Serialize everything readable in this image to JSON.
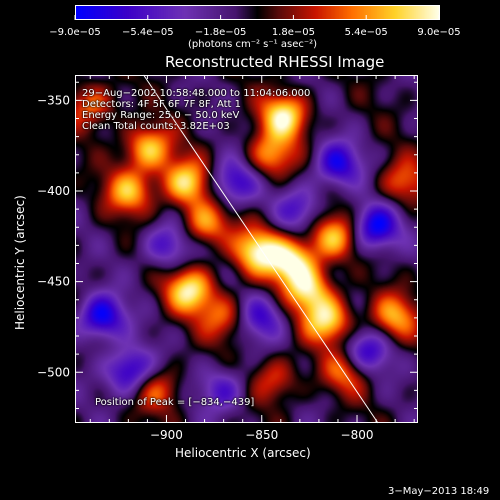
{
  "chart_data": {
    "type": "heatmap",
    "title": "Reconstructed RHESSI Image",
    "xlabel": "Heliocentric X (arcsec)",
    "ylabel": "Heliocentric Y (arcsec)",
    "xlim": [
      -948,
      -768
    ],
    "ylim": [
      -528,
      -336
    ],
    "x_ticks": [
      -900,
      -850,
      -800
    ],
    "x_tick_labels": [
      "−900",
      "−850",
      "−800"
    ],
    "y_ticks": [
      -350,
      -400,
      -450,
      -500
    ],
    "y_tick_labels": [
      "−350",
      "−400",
      "−450",
      "−500"
    ],
    "colorbar": {
      "min": -9e-05,
      "max": 9e-05,
      "ticks": [
        -9e-05,
        -5.4e-05,
        -1.8e-05,
        1.8e-05,
        5.4e-05,
        9e-05
      ],
      "tick_labels": [
        "−9.0e−05",
        "−5.4e−05",
        "−1.8e−05",
        "1.8e−05",
        "5.4e−05",
        "9.0e−05"
      ],
      "units_label": "(photons cm⁻² s⁻¹ asec⁻²)"
    },
    "annotations": [
      "29−Aug−2002 10:58:48.000 to 11:04:06.000",
      "Detectors: 4F 5F 6F 7F 8F, Att 1",
      "Energy Range: 25.0 − 50.0 keV",
      "Clean     Total counts: 3.82E+03"
    ],
    "peak_label": "Position of Peak = [−834,−439]",
    "peak_position": [
      -834,
      -439
    ],
    "limb_line": [
      [
        -912,
        -336
      ],
      [
        -789,
        -528
      ]
    ],
    "bright_sources": [
      {
        "x": -838,
        "y": -358,
        "level": 0.95
      },
      {
        "x": -910,
        "y": -376,
        "level": 0.85
      },
      {
        "x": -845,
        "y": -380,
        "level": 0.7
      },
      {
        "x": -890,
        "y": -395,
        "level": 0.9
      },
      {
        "x": -920,
        "y": -400,
        "level": 0.75
      },
      {
        "x": -880,
        "y": -418,
        "level": 0.7
      },
      {
        "x": -852,
        "y": -433,
        "level": 0.95
      },
      {
        "x": -834,
        "y": -439,
        "level": 1.0
      },
      {
        "x": -825,
        "y": -455,
        "level": 0.85
      },
      {
        "x": -888,
        "y": -455,
        "level": 0.95
      },
      {
        "x": -812,
        "y": -425,
        "level": 0.8
      },
      {
        "x": -815,
        "y": -472,
        "level": 0.9
      },
      {
        "x": -805,
        "y": -500,
        "level": 0.6
      },
      {
        "x": -775,
        "y": -395,
        "level": 0.55
      },
      {
        "x": -780,
        "y": -470,
        "level": 0.7
      },
      {
        "x": -940,
        "y": -352,
        "level": 0.6
      },
      {
        "x": -870,
        "y": -470,
        "level": 0.55
      },
      {
        "x": -905,
        "y": -510,
        "level": 0.55
      },
      {
        "x": -843,
        "y": -505,
        "level": 0.5
      }
    ],
    "dark_sources": [
      {
        "x": -935,
        "y": -470,
        "level": -0.9
      },
      {
        "x": -920,
        "y": -500,
        "level": -0.85
      },
      {
        "x": -900,
        "y": -430,
        "level": -0.6
      },
      {
        "x": -865,
        "y": -395,
        "level": -0.7
      },
      {
        "x": -810,
        "y": -385,
        "level": -0.75
      },
      {
        "x": -790,
        "y": -420,
        "level": -0.9
      },
      {
        "x": -795,
        "y": -490,
        "level": -0.7
      },
      {
        "x": -850,
        "y": -470,
        "level": -0.6
      },
      {
        "x": -870,
        "y": -510,
        "level": -0.55
      },
      {
        "x": -830,
        "y": -410,
        "level": -0.5
      }
    ]
  },
  "footer": {
    "date": "3−May−2013 18:49"
  }
}
